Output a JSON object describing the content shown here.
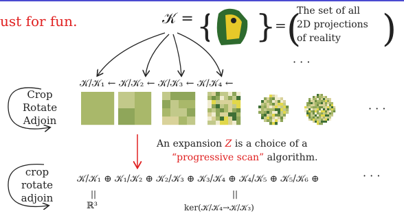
{
  "heading": "ust for fun.",
  "k_equals": "𝒦 =",
  "set_equals": "=",
  "set_description": [
    "The set of all",
    "2D projections",
    "of reality"
  ],
  "top_ellipsis": "· · ·",
  "quotient_chain": "𝒦/𝒦₁ ← 𝒦/𝒦₂ ← 𝒦/𝒦₃ ← 𝒦/𝒦₄ ←",
  "image_ellipsis": "· · ·",
  "upper_loop": [
    "Crop",
    "Rotate",
    "Adjoin"
  ],
  "lower_loop": [
    "crop",
    "rotate",
    "adjoin"
  ],
  "expansion_line1": [
    "An expansion ",
    "Z",
    " is a choice of a"
  ],
  "expansion_line2": [
    "“progressive scan”",
    " algorithm."
  ],
  "sum_chain": "𝒦/𝒦₁ ⊕ 𝒦₁/𝒦₂ ⊕ 𝒦₂/𝒦₃ ⊕ 𝒦₃/𝒦₄ ⊕ 𝒦₄/𝒦₅ ⊕ 𝒦₅/𝒦₆ ⊕",
  "sum_ellipsis": "· · ·",
  "equal_left": "||",
  "r3": "ℝ³",
  "equal_right": "||",
  "kernel": "ker(𝒦/𝒦₄→𝒦/𝒦₃)"
}
